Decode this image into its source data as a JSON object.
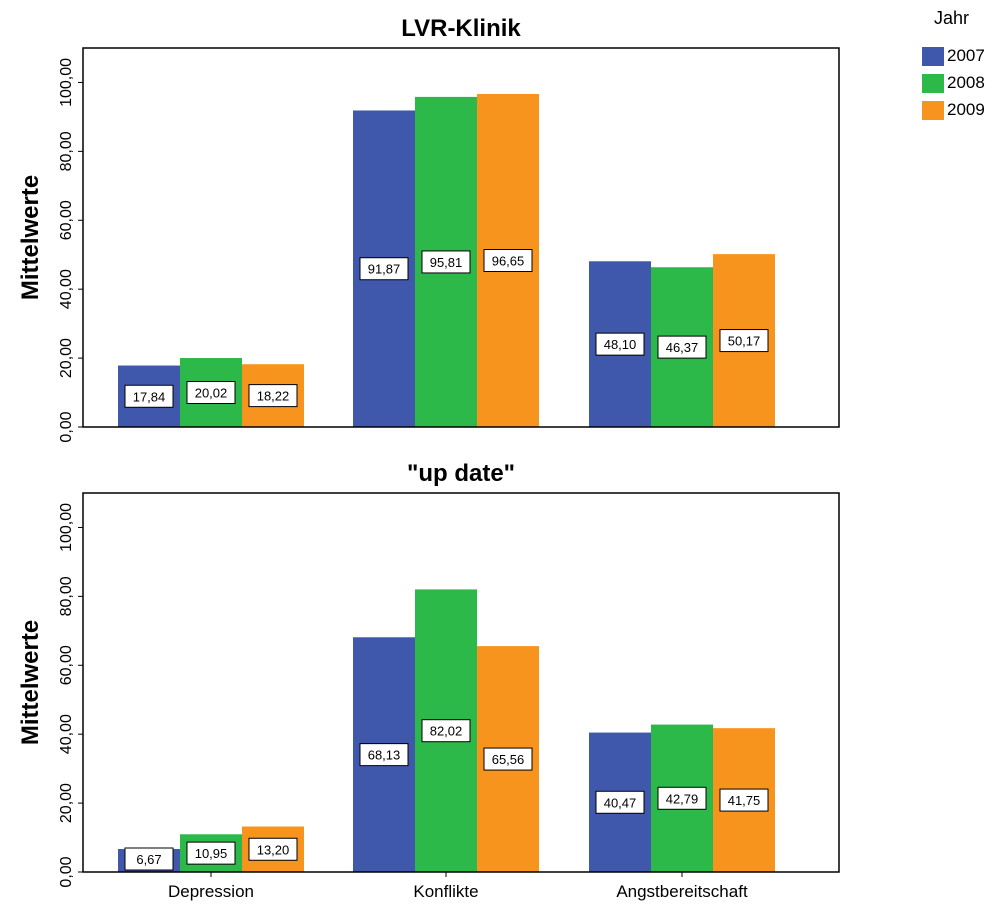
{
  "legend": {
    "title": "Jahr",
    "items": [
      {
        "label": "2007",
        "color": "#3f58ab"
      },
      {
        "label": "2008",
        "color": "#2db84a"
      },
      {
        "label": "2009",
        "color": "#f7941d"
      }
    ]
  },
  "chart_data": [
    {
      "type": "bar",
      "title": "LVR-Klinik",
      "ylabel": "Mittelwerte",
      "xlabel": "",
      "categories": [
        "Depression",
        "Konflikte",
        "Angstbereitschaft"
      ],
      "series": [
        {
          "name": "2007",
          "values": [
            17.84,
            91.87,
            48.1
          ],
          "labels": [
            "17,84",
            "91,87",
            "48,10"
          ]
        },
        {
          "name": "2008",
          "values": [
            20.02,
            95.81,
            46.37
          ],
          "labels": [
            "20,02",
            "95,81",
            "46,37"
          ]
        },
        {
          "name": "2009",
          "values": [
            18.22,
            96.65,
            50.17
          ],
          "labels": [
            "18,22",
            "96,65",
            "50,17"
          ]
        }
      ],
      "ylim": [
        0,
        110
      ],
      "yticks": [
        0,
        20,
        40,
        60,
        80,
        100
      ],
      "ytick_labels": [
        "0,00",
        "20,00",
        "40,00",
        "60,00",
        "80,00",
        "100,00"
      ],
      "show_category_labels": false,
      "grid": false
    },
    {
      "type": "bar",
      "title": "\"up date\"",
      "ylabel": "Mittelwerte",
      "xlabel": "",
      "categories": [
        "Depression",
        "Konflikte",
        "Angstbereitschaft"
      ],
      "series": [
        {
          "name": "2007",
          "values": [
            6.67,
            68.13,
            40.47
          ],
          "labels": [
            "6,67",
            "68,13",
            "40,47"
          ]
        },
        {
          "name": "2008",
          "values": [
            10.95,
            82.02,
            42.79
          ],
          "labels": [
            "10,95",
            "82,02",
            "42,79"
          ]
        },
        {
          "name": "2009",
          "values": [
            13.2,
            65.56,
            41.75
          ],
          "labels": [
            "13,20",
            "65,56",
            "41,75"
          ]
        }
      ],
      "ylim": [
        0,
        110
      ],
      "yticks": [
        0,
        20,
        40,
        60,
        80,
        100
      ],
      "ytick_labels": [
        "0,00",
        "20,00",
        "40,00",
        "60,00",
        "80,00",
        "100,00"
      ],
      "show_category_labels": true,
      "grid": false
    }
  ]
}
